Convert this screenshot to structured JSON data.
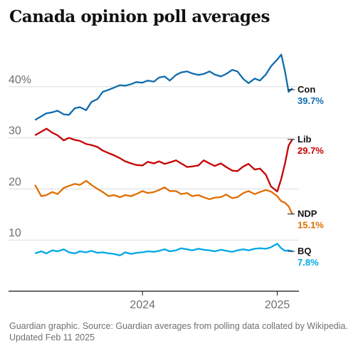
{
  "chart_data": {
    "type": "line",
    "title": "Canada opinion poll averages",
    "source": "Guardian graphic. Source: Guardian averages from polling data collated by Wikipedia.",
    "updated": "Updated Feb 11 2025",
    "xlim": [
      "2023-03-01",
      "2025-03-01"
    ],
    "ylim": [
      0,
      50
    ],
    "y_ticks": [
      {
        "value": 10,
        "label": "10"
      },
      {
        "value": 20,
        "label": "20"
      },
      {
        "value": 30,
        "label": "30"
      },
      {
        "value": 40,
        "label": "40%"
      }
    ],
    "x_ticks": [
      {
        "value": "2024-01-01",
        "label": "2024"
      },
      {
        "value": "2025-01-01",
        "label": "2025"
      }
    ],
    "grid": "horizontal",
    "legend": "end-labels-right",
    "series": [
      {
        "name": "Con",
        "value_label": "39.7%",
        "color": "#0f6cae",
        "points": [
          [
            "2023-03-15",
            33.5
          ],
          [
            "2023-04-01",
            34.2
          ],
          [
            "2023-04-15",
            34.8
          ],
          [
            "2023-05-01",
            35.0
          ],
          [
            "2023-05-15",
            35.3
          ],
          [
            "2023-06-01",
            34.6
          ],
          [
            "2023-06-15",
            34.5
          ],
          [
            "2023-07-01",
            35.8
          ],
          [
            "2023-07-15",
            36.0
          ],
          [
            "2023-08-01",
            35.4
          ],
          [
            "2023-08-15",
            37.0
          ],
          [
            "2023-09-01",
            37.6
          ],
          [
            "2023-09-15",
            39.0
          ],
          [
            "2023-10-01",
            39.4
          ],
          [
            "2023-10-15",
            39.8
          ],
          [
            "2023-11-01",
            40.3
          ],
          [
            "2023-11-15",
            40.2
          ],
          [
            "2023-12-01",
            40.5
          ],
          [
            "2023-12-15",
            40.9
          ],
          [
            "2024-01-01",
            40.8
          ],
          [
            "2024-01-15",
            41.2
          ],
          [
            "2024-02-01",
            41.0
          ],
          [
            "2024-02-15",
            41.8
          ],
          [
            "2024-03-01",
            42.0
          ],
          [
            "2024-03-15",
            41.2
          ],
          [
            "2024-04-01",
            42.3
          ],
          [
            "2024-04-15",
            42.8
          ],
          [
            "2024-05-01",
            43.0
          ],
          [
            "2024-05-15",
            42.6
          ],
          [
            "2024-06-01",
            42.3
          ],
          [
            "2024-06-15",
            42.5
          ],
          [
            "2024-07-01",
            43.0
          ],
          [
            "2024-07-15",
            42.4
          ],
          [
            "2024-08-01",
            42.0
          ],
          [
            "2024-08-15",
            42.5
          ],
          [
            "2024-09-01",
            43.3
          ],
          [
            "2024-09-15",
            43.0
          ],
          [
            "2024-10-01",
            41.5
          ],
          [
            "2024-10-15",
            40.7
          ],
          [
            "2024-11-01",
            41.6
          ],
          [
            "2024-11-15",
            41.2
          ],
          [
            "2024-12-01",
            42.4
          ],
          [
            "2024-12-15",
            44.0
          ],
          [
            "2025-01-01",
            45.3
          ],
          [
            "2025-01-12",
            46.3
          ],
          [
            "2025-01-22",
            43.0
          ],
          [
            "2025-02-01",
            39.0
          ],
          [
            "2025-02-11",
            39.7
          ]
        ]
      },
      {
        "name": "Lib",
        "value_label": "29.7%",
        "color": "#c70000",
        "points": [
          [
            "2023-03-15",
            30.5
          ],
          [
            "2023-04-01",
            31.2
          ],
          [
            "2023-04-15",
            31.8
          ],
          [
            "2023-05-01",
            31.0
          ],
          [
            "2023-05-15",
            30.5
          ],
          [
            "2023-06-01",
            29.5
          ],
          [
            "2023-06-15",
            30.0
          ],
          [
            "2023-07-01",
            29.6
          ],
          [
            "2023-07-15",
            29.4
          ],
          [
            "2023-08-01",
            28.8
          ],
          [
            "2023-08-15",
            28.6
          ],
          [
            "2023-09-01",
            28.2
          ],
          [
            "2023-09-15",
            27.5
          ],
          [
            "2023-10-01",
            27.0
          ],
          [
            "2023-10-15",
            26.6
          ],
          [
            "2023-11-01",
            26.0
          ],
          [
            "2023-11-15",
            25.4
          ],
          [
            "2023-12-01",
            25.0
          ],
          [
            "2023-12-15",
            24.7
          ],
          [
            "2024-01-01",
            24.6
          ],
          [
            "2024-01-15",
            25.3
          ],
          [
            "2024-02-01",
            25.0
          ],
          [
            "2024-02-15",
            25.4
          ],
          [
            "2024-03-01",
            24.9
          ],
          [
            "2024-03-15",
            25.2
          ],
          [
            "2024-04-01",
            25.6
          ],
          [
            "2024-04-15",
            25.0
          ],
          [
            "2024-05-01",
            24.3
          ],
          [
            "2024-05-15",
            24.4
          ],
          [
            "2024-06-01",
            24.6
          ],
          [
            "2024-06-15",
            25.6
          ],
          [
            "2024-07-01",
            25.0
          ],
          [
            "2024-07-15",
            24.5
          ],
          [
            "2024-08-01",
            25.0
          ],
          [
            "2024-08-15",
            24.3
          ],
          [
            "2024-09-01",
            23.6
          ],
          [
            "2024-09-15",
            23.5
          ],
          [
            "2024-10-01",
            24.4
          ],
          [
            "2024-10-15",
            24.9
          ],
          [
            "2024-11-01",
            23.8
          ],
          [
            "2024-11-15",
            24.0
          ],
          [
            "2024-12-01",
            22.8
          ],
          [
            "2024-12-15",
            20.5
          ],
          [
            "2025-01-01",
            19.5
          ],
          [
            "2025-01-12",
            22.0
          ],
          [
            "2025-01-22",
            25.0
          ],
          [
            "2025-02-01",
            28.5
          ],
          [
            "2025-02-11",
            29.7
          ]
        ]
      },
      {
        "name": "NDP",
        "value_label": "15.1%",
        "color": "#e06e00",
        "points": [
          [
            "2023-03-15",
            20.8
          ],
          [
            "2023-04-01",
            18.6
          ],
          [
            "2023-04-15",
            18.8
          ],
          [
            "2023-05-01",
            19.4
          ],
          [
            "2023-05-15",
            19.0
          ],
          [
            "2023-06-01",
            20.2
          ],
          [
            "2023-06-15",
            20.6
          ],
          [
            "2023-07-01",
            21.0
          ],
          [
            "2023-07-15",
            20.8
          ],
          [
            "2023-08-01",
            21.6
          ],
          [
            "2023-08-15",
            20.8
          ],
          [
            "2023-09-01",
            20.0
          ],
          [
            "2023-09-15",
            19.4
          ],
          [
            "2023-10-01",
            18.6
          ],
          [
            "2023-10-15",
            18.8
          ],
          [
            "2023-11-01",
            18.4
          ],
          [
            "2023-11-15",
            18.8
          ],
          [
            "2023-12-01",
            18.6
          ],
          [
            "2023-12-15",
            19.0
          ],
          [
            "2024-01-01",
            19.6
          ],
          [
            "2024-01-15",
            19.2
          ],
          [
            "2024-02-01",
            19.4
          ],
          [
            "2024-02-15",
            19.8
          ],
          [
            "2024-03-01",
            20.3
          ],
          [
            "2024-03-15",
            19.6
          ],
          [
            "2024-04-01",
            19.6
          ],
          [
            "2024-04-15",
            19.0
          ],
          [
            "2024-05-01",
            19.2
          ],
          [
            "2024-05-15",
            18.6
          ],
          [
            "2024-06-01",
            18.8
          ],
          [
            "2024-06-15",
            18.4
          ],
          [
            "2024-07-01",
            18.0
          ],
          [
            "2024-07-15",
            18.3
          ],
          [
            "2024-08-01",
            18.4
          ],
          [
            "2024-08-15",
            18.9
          ],
          [
            "2024-09-01",
            18.2
          ],
          [
            "2024-09-15",
            18.4
          ],
          [
            "2024-10-01",
            19.2
          ],
          [
            "2024-10-15",
            19.6
          ],
          [
            "2024-11-01",
            19.0
          ],
          [
            "2024-11-15",
            19.4
          ],
          [
            "2024-12-01",
            19.8
          ],
          [
            "2024-12-15",
            19.5
          ],
          [
            "2025-01-01",
            18.6
          ],
          [
            "2025-01-12",
            17.6
          ],
          [
            "2025-01-22",
            17.3
          ],
          [
            "2025-02-01",
            16.6
          ],
          [
            "2025-02-11",
            15.1
          ]
        ]
      },
      {
        "name": "BQ",
        "value_label": "7.8%",
        "color": "#00a8e6",
        "points": [
          [
            "2023-03-15",
            7.4
          ],
          [
            "2023-04-01",
            7.8
          ],
          [
            "2023-04-15",
            7.4
          ],
          [
            "2023-05-01",
            8.0
          ],
          [
            "2023-05-15",
            7.8
          ],
          [
            "2023-06-01",
            8.2
          ],
          [
            "2023-06-15",
            7.6
          ],
          [
            "2023-07-01",
            7.4
          ],
          [
            "2023-07-15",
            7.8
          ],
          [
            "2023-08-01",
            7.6
          ],
          [
            "2023-08-15",
            7.9
          ],
          [
            "2023-09-01",
            7.5
          ],
          [
            "2023-09-15",
            7.6
          ],
          [
            "2023-10-01",
            7.4
          ],
          [
            "2023-10-15",
            7.3
          ],
          [
            "2023-11-01",
            7.0
          ],
          [
            "2023-11-15",
            7.6
          ],
          [
            "2023-12-01",
            7.3
          ],
          [
            "2023-12-15",
            7.5
          ],
          [
            "2024-01-01",
            7.6
          ],
          [
            "2024-01-15",
            7.8
          ],
          [
            "2024-02-01",
            7.7
          ],
          [
            "2024-02-15",
            7.9
          ],
          [
            "2024-03-01",
            8.2
          ],
          [
            "2024-03-15",
            7.8
          ],
          [
            "2024-04-01",
            8.0
          ],
          [
            "2024-04-15",
            8.4
          ],
          [
            "2024-05-01",
            8.2
          ],
          [
            "2024-05-15",
            8.0
          ],
          [
            "2024-06-01",
            8.3
          ],
          [
            "2024-06-15",
            8.1
          ],
          [
            "2024-07-01",
            8.0
          ],
          [
            "2024-07-15",
            7.8
          ],
          [
            "2024-08-01",
            8.1
          ],
          [
            "2024-08-15",
            7.9
          ],
          [
            "2024-09-01",
            7.7
          ],
          [
            "2024-09-15",
            8.0
          ],
          [
            "2024-10-01",
            8.2
          ],
          [
            "2024-10-15",
            8.0
          ],
          [
            "2024-11-01",
            8.3
          ],
          [
            "2024-11-15",
            8.4
          ],
          [
            "2024-12-01",
            8.3
          ],
          [
            "2024-12-15",
            8.6
          ],
          [
            "2025-01-01",
            9.3
          ],
          [
            "2025-01-12",
            8.4
          ],
          [
            "2025-01-22",
            7.9
          ],
          [
            "2025-02-01",
            8.0
          ],
          [
            "2025-02-11",
            7.8
          ]
        ]
      }
    ]
  }
}
